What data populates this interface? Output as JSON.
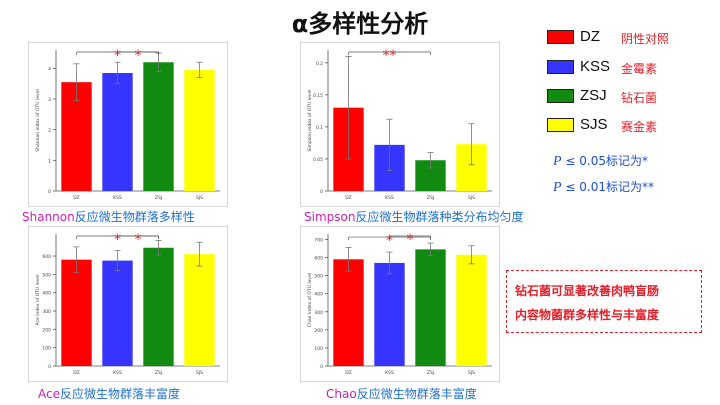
{
  "title": "α多样性分析",
  "legend": [
    {
      "code": "DZ",
      "name": "阴性对照",
      "color": "#ff0000"
    },
    {
      "code": "KSS",
      "name": "金霉素",
      "color": "#3535ff"
    },
    {
      "code": "ZSJ",
      "name": "钻石菌",
      "color": "#118a11"
    },
    {
      "code": "SJS",
      "name": "赛金素",
      "color": "#ffff00"
    }
  ],
  "significance": [
    {
      "p": "P",
      "text": "≤ 0.05标记为*"
    },
    {
      "p": "P",
      "text": "≤ 0.01标记为**"
    }
  ],
  "conclusion": [
    "钻石菌可显著改善肉鸭盲肠",
    "内容物菌群多样性与丰富度"
  ],
  "captions": [
    {
      "key": "Shannon",
      "text": "反应微生物群落多样性"
    },
    {
      "key": "Simpson",
      "text": "反应微生物群落种类分布均匀度"
    },
    {
      "key": "Ace",
      "text": "反应微生物群落丰富度"
    },
    {
      "key": "Chao",
      "text": "反应微生物群落丰富度"
    }
  ],
  "chart_data": [
    {
      "type": "bar",
      "categories": [
        "DZ",
        "KSS",
        "ZSJ",
        "SJS"
      ],
      "values": [
        3.55,
        3.85,
        4.2,
        3.95
      ],
      "errors": [
        0.6,
        0.35,
        0.3,
        0.25
      ],
      "colors": [
        "#ff0000",
        "#3535ff",
        "#118a11",
        "#ffff00"
      ],
      "ylabel": "Shannon index of OTU level",
      "ylim": [
        0,
        4.6
      ],
      "yticks": [
        "0",
        "1",
        "2",
        "3",
        "4"
      ],
      "ytick_values": [
        0,
        1,
        2,
        3,
        4
      ],
      "annotations": [
        {
          "from": 0,
          "to": 2,
          "label": "*"
        },
        {
          "from": 1,
          "to": 2,
          "label": "*"
        }
      ]
    },
    {
      "type": "bar",
      "categories": [
        "DZ",
        "KSS",
        "ZSJ",
        "SJS"
      ],
      "values": [
        0.13,
        0.072,
        0.048,
        0.073
      ],
      "errors": [
        0.08,
        0.04,
        0.012,
        0.032
      ],
      "colors": [
        "#ff0000",
        "#3535ff",
        "#118a11",
        "#ffff00"
      ],
      "ylabel": "Simpson index of OTU level",
      "ylim": [
        0,
        0.22
      ],
      "yticks": [
        "0",
        "0.05",
        "0.1",
        "0.15",
        "0.2"
      ],
      "ytick_values": [
        0,
        0.05,
        0.1,
        0.15,
        0.2
      ],
      "annotations": [
        {
          "from": 0,
          "to": 2,
          "label": "**"
        }
      ]
    },
    {
      "type": "bar",
      "categories": [
        "DZ",
        "KSS",
        "ZSJ",
        "SJS"
      ],
      "values": [
        580,
        575,
        645,
        610
      ],
      "errors": [
        70,
        55,
        40,
        65
      ],
      "colors": [
        "#ff0000",
        "#3535ff",
        "#118a11",
        "#ffff00"
      ],
      "ylabel": "Ace index of OTU level",
      "ylim": [
        0,
        720
      ],
      "yticks": [
        "0",
        "100",
        "200",
        "300",
        "400",
        "500",
        "600"
      ],
      "ytick_values": [
        0,
        100,
        200,
        300,
        400,
        500,
        600
      ],
      "annotations": [
        {
          "from": 0,
          "to": 2,
          "label": "*"
        },
        {
          "from": 1,
          "to": 2,
          "label": "*"
        }
      ]
    },
    {
      "type": "bar",
      "categories": [
        "DZ",
        "KSS",
        "ZSJ",
        "SJS"
      ],
      "values": [
        590,
        570,
        645,
        615
      ],
      "errors": [
        65,
        60,
        35,
        50
      ],
      "colors": [
        "#ff0000",
        "#3535ff",
        "#118a11",
        "#ffff00"
      ],
      "ylabel": "Chao index of OTU level",
      "ylim": [
        0,
        730
      ],
      "yticks": [
        "0",
        "100",
        "200",
        "300",
        "400",
        "500",
        "600",
        "700"
      ],
      "ytick_values": [
        0,
        100,
        200,
        300,
        400,
        500,
        600,
        700
      ],
      "annotations": [
        {
          "from": 0,
          "to": 2,
          "label": "*"
        },
        {
          "from": 1,
          "to": 2,
          "label": "*"
        }
      ]
    }
  ]
}
